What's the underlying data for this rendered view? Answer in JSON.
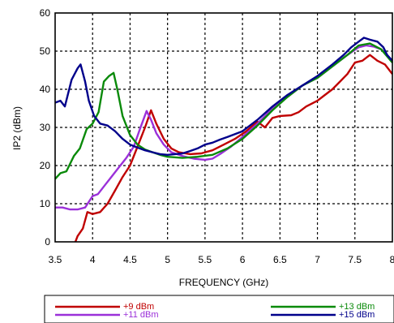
{
  "chart_data": {
    "type": "line",
    "title": "",
    "xlabel": "FREQUENCY (GHz)",
    "ylabel": "IP2 (dBm)",
    "xlim": [
      3.5,
      8
    ],
    "ylim": [
      0,
      60
    ],
    "x_ticks": [
      3.5,
      4,
      4.5,
      5,
      5.5,
      6,
      6.5,
      7,
      7.5,
      8
    ],
    "x_tick_labels": [
      "3.5",
      "4",
      "4.5",
      "5",
      "5.5",
      "6",
      "6.5",
      "7",
      "7.5",
      "8"
    ],
    "y_ticks": [
      0,
      10,
      20,
      30,
      40,
      50,
      60
    ],
    "y_tick_labels": [
      "0",
      "10",
      "20",
      "30",
      "40",
      "50",
      "60"
    ],
    "grid": true,
    "legend_position": "bottom",
    "series": [
      {
        "name": "+9 dBm",
        "color": "#c00000",
        "points": [
          [
            3.77,
            0
          ],
          [
            3.8,
            1.5
          ],
          [
            3.87,
            3.5
          ],
          [
            3.93,
            7.8
          ],
          [
            4.0,
            7.3
          ],
          [
            4.1,
            7.8
          ],
          [
            4.2,
            10
          ],
          [
            4.3,
            13.5
          ],
          [
            4.4,
            17
          ],
          [
            4.5,
            20
          ],
          [
            4.6,
            25
          ],
          [
            4.7,
            30
          ],
          [
            4.78,
            34.5
          ],
          [
            4.85,
            31
          ],
          [
            4.95,
            27
          ],
          [
            5.05,
            24.5
          ],
          [
            5.15,
            23.5
          ],
          [
            5.3,
            23
          ],
          [
            5.45,
            23.2
          ],
          [
            5.6,
            24
          ],
          [
            5.75,
            25.5
          ],
          [
            5.9,
            27
          ],
          [
            6.05,
            29
          ],
          [
            6.2,
            31.5
          ],
          [
            6.3,
            30
          ],
          [
            6.4,
            32.5
          ],
          [
            6.5,
            33
          ],
          [
            6.65,
            33.2
          ],
          [
            6.75,
            34
          ],
          [
            6.85,
            35.5
          ],
          [
            7.0,
            37
          ],
          [
            7.1,
            38.5
          ],
          [
            7.2,
            40
          ],
          [
            7.3,
            42
          ],
          [
            7.4,
            44
          ],
          [
            7.5,
            47
          ],
          [
            7.6,
            47.5
          ],
          [
            7.7,
            49
          ],
          [
            7.8,
            47.5
          ],
          [
            7.9,
            46.5
          ],
          [
            8.0,
            44
          ]
        ]
      },
      {
        "name": "+11 dBm",
        "color": "#9b30d9",
        "points": [
          [
            3.5,
            9
          ],
          [
            3.6,
            9
          ],
          [
            3.7,
            8.5
          ],
          [
            3.8,
            8.5
          ],
          [
            3.9,
            9
          ],
          [
            4.0,
            12
          ],
          [
            4.07,
            12.5
          ],
          [
            4.15,
            14.5
          ],
          [
            4.25,
            17
          ],
          [
            4.35,
            19.5
          ],
          [
            4.45,
            22
          ],
          [
            4.55,
            25
          ],
          [
            4.63,
            29.5
          ],
          [
            4.72,
            34.3
          ],
          [
            4.78,
            32
          ],
          [
            4.85,
            28.5
          ],
          [
            4.95,
            25.5
          ],
          [
            5.05,
            23.5
          ],
          [
            5.2,
            22.5
          ],
          [
            5.35,
            21.8
          ],
          [
            5.5,
            21.5
          ],
          [
            5.6,
            21.8
          ],
          [
            5.7,
            23
          ],
          [
            5.85,
            25
          ],
          [
            6.0,
            27.5
          ],
          [
            6.2,
            31
          ],
          [
            6.4,
            35
          ],
          [
            6.6,
            38
          ],
          [
            6.8,
            41
          ],
          [
            7.0,
            43
          ],
          [
            7.2,
            46
          ],
          [
            7.4,
            49
          ],
          [
            7.55,
            51
          ],
          [
            7.65,
            51.5
          ],
          [
            7.75,
            51.2
          ],
          [
            7.85,
            50.5
          ],
          [
            7.93,
            49
          ],
          [
            8.0,
            47
          ]
        ]
      },
      {
        "name": "+13 dBm",
        "color": "#0a8a0a",
        "points": [
          [
            3.5,
            16.5
          ],
          [
            3.57,
            18
          ],
          [
            3.65,
            18.5
          ],
          [
            3.75,
            22.5
          ],
          [
            3.83,
            24.5
          ],
          [
            3.92,
            29.5
          ],
          [
            4.0,
            31
          ],
          [
            4.08,
            34
          ],
          [
            4.15,
            42
          ],
          [
            4.22,
            43.5
          ],
          [
            4.28,
            44.3
          ],
          [
            4.33,
            40
          ],
          [
            4.4,
            33
          ],
          [
            4.5,
            28
          ],
          [
            4.6,
            25.5
          ],
          [
            4.7,
            24.2
          ],
          [
            4.8,
            23.5
          ],
          [
            4.9,
            22.8
          ],
          [
            5.0,
            22.3
          ],
          [
            5.2,
            22
          ],
          [
            5.4,
            22.3
          ],
          [
            5.6,
            22.8
          ],
          [
            5.8,
            24.5
          ],
          [
            6.0,
            27
          ],
          [
            6.2,
            30.5
          ],
          [
            6.4,
            34.5
          ],
          [
            6.6,
            38
          ],
          [
            6.8,
            41
          ],
          [
            7.0,
            43
          ],
          [
            7.2,
            46
          ],
          [
            7.4,
            49
          ],
          [
            7.55,
            51.5
          ],
          [
            7.7,
            52
          ],
          [
            7.85,
            50.5
          ],
          [
            8.0,
            47
          ]
        ]
      },
      {
        "name": "+15 dBm",
        "color": "#00008b",
        "points": [
          [
            3.5,
            36.5
          ],
          [
            3.57,
            37
          ],
          [
            3.63,
            35.5
          ],
          [
            3.72,
            42.5
          ],
          [
            3.8,
            45.5
          ],
          [
            3.84,
            46.5
          ],
          [
            3.9,
            42
          ],
          [
            3.95,
            37
          ],
          [
            4.02,
            33
          ],
          [
            4.1,
            31
          ],
          [
            4.2,
            30.5
          ],
          [
            4.3,
            29
          ],
          [
            4.4,
            27
          ],
          [
            4.5,
            25.5
          ],
          [
            4.6,
            24.7
          ],
          [
            4.7,
            24
          ],
          [
            4.8,
            23.5
          ],
          [
            4.9,
            23
          ],
          [
            5.0,
            22.8
          ],
          [
            5.1,
            23
          ],
          [
            5.2,
            23.2
          ],
          [
            5.3,
            23.8
          ],
          [
            5.4,
            24.5
          ],
          [
            5.5,
            25.5
          ],
          [
            5.6,
            26
          ],
          [
            5.7,
            26.8
          ],
          [
            5.8,
            27.5
          ],
          [
            6.0,
            29
          ],
          [
            6.2,
            32
          ],
          [
            6.4,
            35.5
          ],
          [
            6.6,
            38.5
          ],
          [
            6.8,
            41
          ],
          [
            7.0,
            43.5
          ],
          [
            7.2,
            46.5
          ],
          [
            7.35,
            49
          ],
          [
            7.45,
            51
          ],
          [
            7.55,
            52.5
          ],
          [
            7.62,
            53.5
          ],
          [
            7.7,
            53
          ],
          [
            7.8,
            52.5
          ],
          [
            7.88,
            51
          ],
          [
            7.93,
            49
          ],
          [
            8.0,
            47.5
          ]
        ]
      }
    ]
  }
}
